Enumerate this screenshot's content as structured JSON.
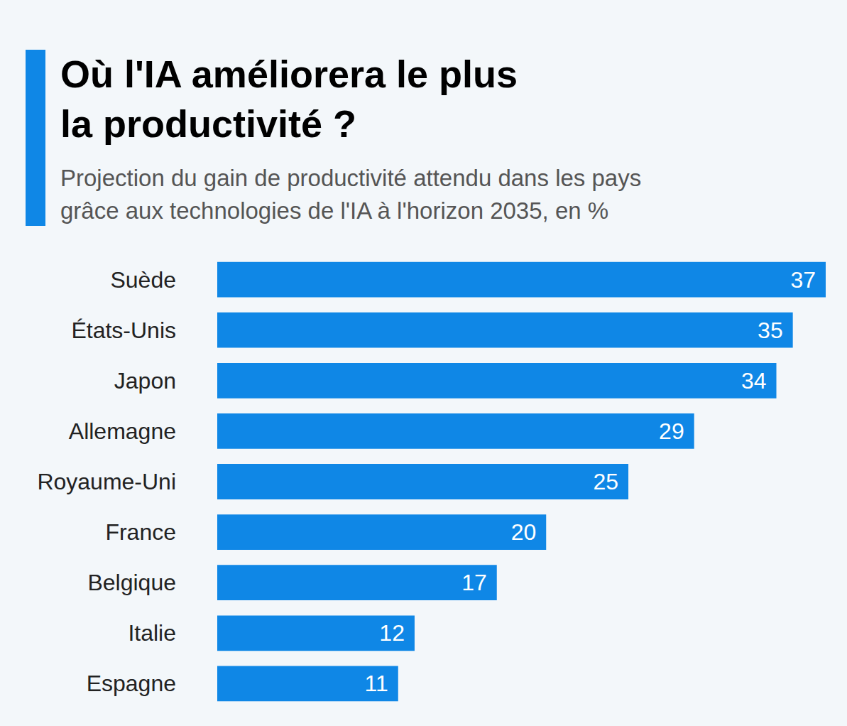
{
  "chart_data": {
    "type": "bar",
    "title": "Où l'IA améliorera le plus\nla productivité ?",
    "subtitle": "Projection du gain de productivité attendu dans les pays\ngrâce aux technologies de l'IA à l'horizon 2035, en %",
    "categories": [
      "Suède",
      "États-Unis",
      "Japon",
      "Allemagne",
      "Royaume-Uni",
      "France",
      "Belgique",
      "Italie",
      "Espagne"
    ],
    "values": [
      37,
      35,
      34,
      29,
      25,
      20,
      17,
      12,
      11
    ],
    "color": "#0f87e6",
    "orientation": "horizontal",
    "xlim": [
      0,
      37
    ],
    "data_labels": true,
    "tick_labels": "y",
    "grid": false
  }
}
